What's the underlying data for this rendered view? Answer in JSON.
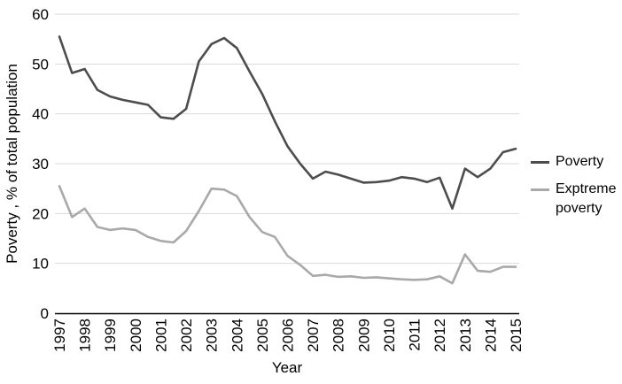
{
  "chart_data": {
    "type": "line",
    "title": "",
    "xlabel": "Year",
    "ylabel": "Poverty , % of total population",
    "ylim": [
      0,
      60
    ],
    "xlim": [
      1997,
      2015
    ],
    "yticks": [
      0,
      10,
      20,
      30,
      40,
      50,
      60
    ],
    "xticks": [
      1997,
      1998,
      1999,
      2000,
      2001,
      2002,
      2003,
      2004,
      2005,
      2006,
      2007,
      2008,
      2009,
      2010,
      2011,
      2012,
      2013,
      2014,
      2015
    ],
    "grid": "horizontal",
    "grid_color": "#d9d9d9",
    "axis_color": "#000000",
    "legend_position": "right",
    "x": [
      1997,
      1997.5,
      1998,
      1998.5,
      1999,
      1999.5,
      2000,
      2000.5,
      2001,
      2001.5,
      2002,
      2002.5,
      2003,
      2003.5,
      2004,
      2004.5,
      2005,
      2005.5,
      2006,
      2006.5,
      2007,
      2007.5,
      2008,
      2008.5,
      2009,
      2009.5,
      2010,
      2010.5,
      2011,
      2011.5,
      2012,
      2012.5,
      2013,
      2013.5,
      2014,
      2014.5,
      2015
    ],
    "series": [
      {
        "name": "Poverty",
        "color": "#4d4d4d",
        "values": [
          55.5,
          48.2,
          49,
          44.8,
          43.5,
          42.8,
          42.3,
          41.8,
          39.3,
          39,
          41,
          50.5,
          54,
          55.2,
          53.2,
          48.5,
          44,
          38.5,
          33.5,
          30,
          27,
          28.4,
          27.8,
          27,
          26.2,
          26.3,
          26.6,
          27.3,
          27,
          26.3,
          27.2,
          21,
          29,
          27.3,
          29,
          32.3,
          33
        ]
      },
      {
        "name": "Exptreme poverty",
        "color": "#a9a9a9",
        "values": [
          25.5,
          19.3,
          21,
          17.3,
          16.7,
          17,
          16.7,
          15.3,
          14.5,
          14.2,
          16.5,
          20.5,
          25,
          24.8,
          23.5,
          19.3,
          16.3,
          15.3,
          11.5,
          9.7,
          7.5,
          7.7,
          7.3,
          7.4,
          7.1,
          7.2,
          7,
          6.8,
          6.7,
          6.8,
          7.4,
          6,
          11.8,
          8.5,
          8.3,
          9.3,
          9.3
        ]
      }
    ]
  }
}
